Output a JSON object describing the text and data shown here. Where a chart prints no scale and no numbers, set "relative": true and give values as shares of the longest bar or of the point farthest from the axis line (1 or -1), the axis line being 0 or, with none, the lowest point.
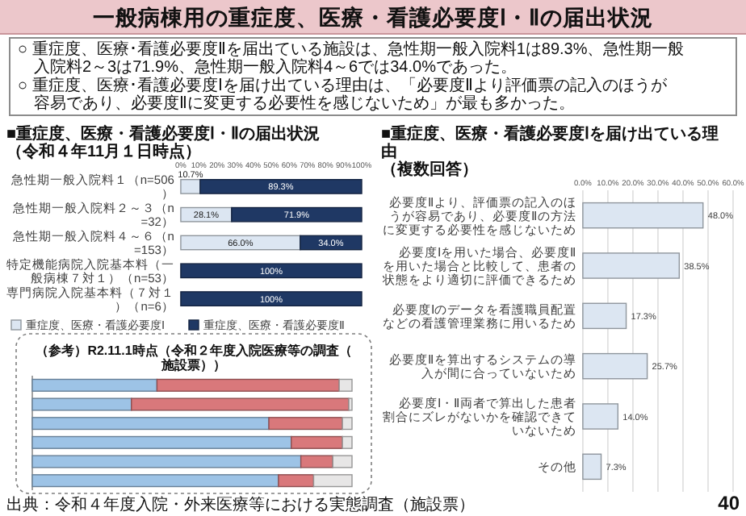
{
  "chart_data": [
    {
      "type": "other",
      "title": "一般病棟用の重症度、医療・看護必要度Ⅰ・Ⅱの届出状況",
      "annotations": [
        "○ 重症度、医療･看護必要度Ⅱを届出ている施設は、急性期一般入院料1は89.3%、急性期一般入院料2～3は71.9%、急性期一般入院料4～6では34.0%であった。",
        "○ 重症度、医療･看護必要度Ⅰを届け出ている理由は、「必要度Ⅱより評価票の記入のほうが容易であり、必要度Ⅱに変更する必要性を感じないため」が最も多かった。",
        "出典：令和４年度入院・外来医療等における実態調査（施設票）",
        "40"
      ]
    },
    {
      "type": "bar",
      "orientation": "horizontal",
      "stacked": true,
      "title": "■重症度、医療・看護必要度Ⅰ・Ⅱの届出状況",
      "subtitle": "（令和４年11月１日時点）",
      "categories": [
        "急性期一般入院料１（n=506）",
        "急性期一般入院料２～３（n=32）",
        "急性期一般入院料４～６（n=153）",
        "特定機能病院入院基本料（一般病棟７対１）（n=53）",
        "専門病院入院基本料（７対１）（n=6）"
      ],
      "series": [
        {
          "name": "重症度、医療・看護必要度Ⅰ",
          "color": "#dce6f2",
          "values": [
            10.7,
            28.1,
            66.0,
            0,
            0
          ],
          "value_labels": [
            "10.7%",
            "28.1%",
            "66.0%",
            null,
            null
          ]
        },
        {
          "name": "重症度、医療・看護必要度Ⅱ",
          "color": "#1f3864",
          "values": [
            89.3,
            71.9,
            34.0,
            100,
            100
          ],
          "value_labels": [
            "89.3%",
            "71.9%",
            "34.0%",
            "100%",
            "100%"
          ]
        }
      ],
      "xlim": [
        0,
        100
      ],
      "xticks": [
        {
          "value": 0,
          "label": "0%"
        },
        {
          "value": 10,
          "label": "10%"
        },
        {
          "value": 20,
          "label": "20%"
        },
        {
          "value": 30,
          "label": "30%"
        },
        {
          "value": 40,
          "label": "40%"
        },
        {
          "value": 50,
          "label": "50%"
        },
        {
          "value": 60,
          "label": "60%"
        },
        {
          "value": 70,
          "label": "70%"
        },
        {
          "value": 80,
          "label": "80%"
        },
        {
          "value": 90,
          "label": "90%"
        },
        {
          "value": 100,
          "label": "100%"
        }
      ],
      "legend": "bottom"
    },
    {
      "type": "bar",
      "orientation": "horizontal",
      "title": "■重症度、医療・看護必要度Ⅰを届け出ている理由",
      "subtitle": "（複数回答）",
      "categories": [
        "必要度Ⅱより、評価票の記入のほうが容易であり、必要度Ⅱの方法に変更する必要性を感じないため",
        "必要度Ⅰを用いた場合、必要度Ⅱを用いた場合と比較して、患者の状態をより適切に評価できるため",
        "必要度Ⅰのデータを看護職員配置などの看護管理業務に用いるため",
        "必要度Ⅱを算出するシステムの導入が間に合っていないため",
        "必要度Ⅰ・Ⅱ両者で算出した患者割合にズレがないかを確認できていないため",
        "その他"
      ],
      "values": [
        48.0,
        38.5,
        17.3,
        25.7,
        14.0,
        7.3
      ],
      "color": "#dce6f2",
      "value_labels": [
        "48.0%",
        "38.5%",
        "17.3%",
        "25.7%",
        "14.0%",
        "7.3%"
      ],
      "xlim": [
        0,
        60
      ],
      "xticks": [
        {
          "value": 0,
          "label": "0.0%"
        },
        {
          "value": 10,
          "label": "10.0%"
        },
        {
          "value": 20,
          "label": "20.0%"
        },
        {
          "value": 30,
          "label": "30.0%"
        },
        {
          "value": 40,
          "label": "40.0%"
        },
        {
          "value": 50,
          "label": "50.0%"
        },
        {
          "value": 60,
          "label": "60.0%"
        }
      ],
      "grid": "x"
    },
    {
      "type": "bar",
      "orientation": "horizontal",
      "stacked": true,
      "relative": true,
      "title": "（参考）R2.11.1時点（令和２年度入院医療等の調査（施設票））",
      "categories": [
        null,
        null,
        null,
        null,
        null,
        null
      ],
      "series": [
        {
          "color": "#9dc3e6",
          "values": [
            0.39,
            0.31,
            0.74,
            0.81,
            0.84,
            0.77
          ]
        },
        {
          "color": "#d9787b",
          "values": [
            0.57,
            0.68,
            0.23,
            0.16,
            0.1,
            0.11
          ]
        },
        {
          "color": "#e7e6e6",
          "values": [
            0.04,
            0.01,
            0.03,
            0.03,
            0.06,
            0.12
          ]
        }
      ]
    }
  ]
}
